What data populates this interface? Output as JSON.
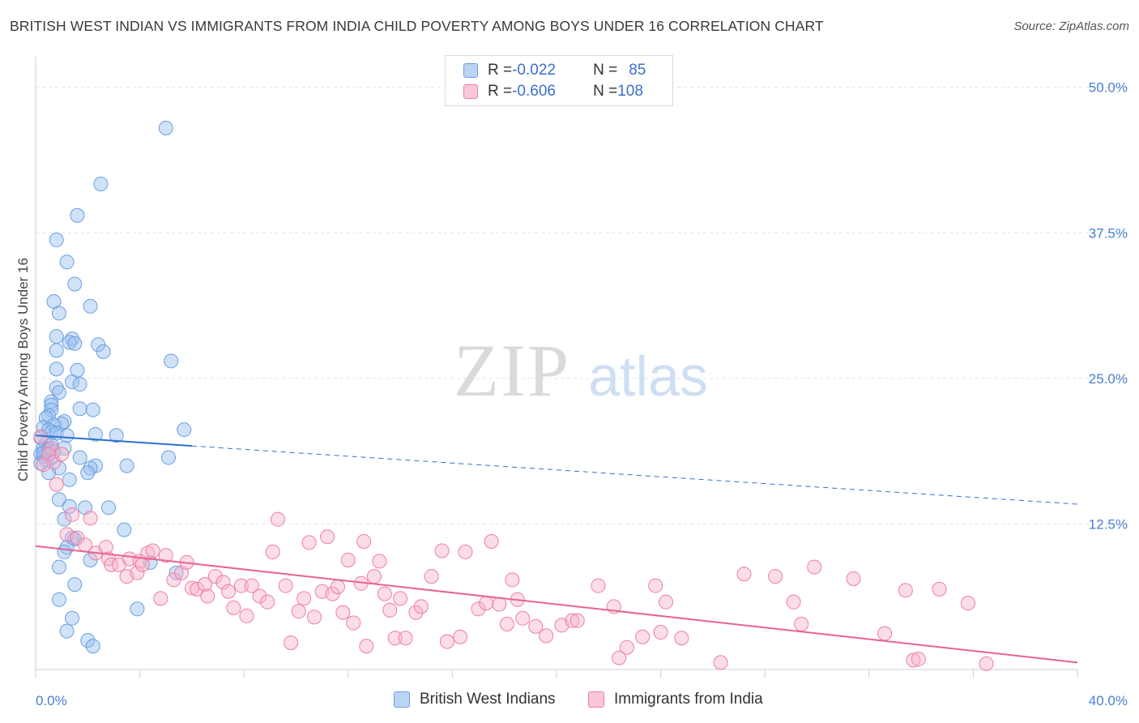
{
  "title": "BRITISH WEST INDIAN VS IMMIGRANTS FROM INDIA CHILD POVERTY AMONG BOYS UNDER 16 CORRELATION CHART",
  "source": "Source: ZipAtlas.com",
  "watermark": {
    "zip": "ZIP",
    "atlas": "atlas"
  },
  "legend": {
    "rows": [
      {
        "r_label": "R = ",
        "r_value": "-0.022",
        "n_label": "N = ",
        "n_value": "85"
      },
      {
        "r_label": "R = ",
        "r_value": "-0.606",
        "n_label": "N = ",
        "n_value": "108"
      }
    ]
  },
  "bottom_legend": [
    "British West Indians",
    "Immigrants from India"
  ],
  "chart_data": {
    "type": "scatter",
    "ylabel": "Child Poverty Among Boys Under 16",
    "xlim": [
      0,
      40
    ],
    "ylim": [
      0,
      52
    ],
    "x_tick_labels": [
      "0.0%",
      "40.0%"
    ],
    "y_ticks": [
      12.5,
      25.0,
      37.5,
      50.0
    ],
    "y_tick_labels": [
      "12.5%",
      "25.0%",
      "37.5%",
      "50.0%"
    ],
    "grid": true,
    "colors": {
      "blue": "#6a9fe0",
      "pink": "#f07ca3",
      "blue_line": "#2f6fd0",
      "pink_line": "#e8638f"
    },
    "series": [
      {
        "name": "British West Indians",
        "color": "blue",
        "points": [
          [
            5.0,
            46.5
          ],
          [
            2.5,
            41.7
          ],
          [
            1.6,
            39.0
          ],
          [
            0.8,
            36.9
          ],
          [
            1.2,
            35.0
          ],
          [
            1.5,
            33.1
          ],
          [
            0.7,
            31.6
          ],
          [
            2.1,
            31.2
          ],
          [
            0.9,
            30.6
          ],
          [
            0.8,
            28.6
          ],
          [
            1.4,
            28.4
          ],
          [
            1.3,
            28.1
          ],
          [
            1.5,
            28.0
          ],
          [
            2.4,
            27.9
          ],
          [
            2.6,
            27.3
          ],
          [
            0.8,
            27.4
          ],
          [
            5.2,
            26.5
          ],
          [
            0.8,
            25.8
          ],
          [
            1.6,
            25.7
          ],
          [
            1.4,
            24.7
          ],
          [
            1.7,
            24.5
          ],
          [
            0.8,
            24.2
          ],
          [
            0.9,
            23.8
          ],
          [
            0.6,
            23.0
          ],
          [
            0.6,
            22.7
          ],
          [
            0.6,
            22.3
          ],
          [
            1.7,
            22.4
          ],
          [
            2.2,
            22.3
          ],
          [
            0.5,
            21.8
          ],
          [
            0.4,
            21.6
          ],
          [
            1.1,
            21.3
          ],
          [
            1.0,
            21.1
          ],
          [
            0.7,
            21.0
          ],
          [
            0.3,
            20.8
          ],
          [
            0.5,
            20.6
          ],
          [
            0.6,
            20.4
          ],
          [
            5.7,
            20.6
          ],
          [
            0.8,
            20.3
          ],
          [
            2.3,
            20.2
          ],
          [
            3.1,
            20.1
          ],
          [
            1.2,
            20.1
          ],
          [
            0.2,
            19.9
          ],
          [
            0.4,
            19.4
          ],
          [
            0.6,
            19.3
          ],
          [
            0.3,
            19.0
          ],
          [
            1.1,
            19.0
          ],
          [
            0.5,
            18.9
          ],
          [
            0.7,
            18.7
          ],
          [
            0.4,
            18.5
          ],
          [
            0.2,
            18.5
          ],
          [
            0.3,
            18.3
          ],
          [
            5.1,
            18.2
          ],
          [
            1.7,
            18.2
          ],
          [
            0.6,
            18.2
          ],
          [
            0.4,
            18.0
          ],
          [
            0.2,
            17.7
          ],
          [
            2.3,
            17.5
          ],
          [
            3.5,
            17.5
          ],
          [
            0.9,
            17.3
          ],
          [
            2.1,
            17.3
          ],
          [
            2.0,
            16.9
          ],
          [
            0.5,
            16.9
          ],
          [
            1.3,
            16.3
          ],
          [
            0.9,
            14.6
          ],
          [
            2.8,
            13.9
          ],
          [
            1.9,
            13.9
          ],
          [
            1.3,
            14.0
          ],
          [
            1.1,
            12.9
          ],
          [
            3.4,
            12.0
          ],
          [
            1.4,
            11.3
          ],
          [
            1.5,
            11.2
          ],
          [
            1.2,
            10.5
          ],
          [
            1.1,
            10.1
          ],
          [
            2.1,
            9.4
          ],
          [
            4.4,
            9.2
          ],
          [
            0.9,
            8.8
          ],
          [
            5.4,
            8.3
          ],
          [
            1.5,
            7.3
          ],
          [
            0.9,
            6.0
          ],
          [
            3.9,
            5.2
          ],
          [
            1.4,
            4.4
          ],
          [
            1.2,
            3.3
          ],
          [
            2.0,
            2.5
          ],
          [
            2.2,
            2.0
          ],
          [
            0.3,
            18.6
          ]
        ]
      },
      {
        "name": "Immigrants from India",
        "color": "pink",
        "points": [
          [
            0.2,
            20.0
          ],
          [
            0.6,
            19.0
          ],
          [
            0.5,
            18.5
          ],
          [
            0.7,
            17.8
          ],
          [
            1.0,
            18.5
          ],
          [
            0.3,
            17.6
          ],
          [
            0.8,
            15.9
          ],
          [
            2.1,
            13.0
          ],
          [
            1.4,
            13.3
          ],
          [
            1.2,
            11.6
          ],
          [
            1.6,
            11.3
          ],
          [
            1.9,
            10.7
          ],
          [
            2.3,
            10.0
          ],
          [
            2.7,
            10.5
          ],
          [
            2.8,
            9.5
          ],
          [
            2.9,
            9.0
          ],
          [
            3.2,
            9.0
          ],
          [
            3.5,
            8.0
          ],
          [
            3.6,
            9.5
          ],
          [
            3.9,
            8.3
          ],
          [
            4.0,
            9.3
          ],
          [
            4.1,
            9.0
          ],
          [
            4.3,
            10.0
          ],
          [
            4.5,
            10.2
          ],
          [
            4.8,
            6.1
          ],
          [
            5.0,
            9.8
          ],
          [
            5.3,
            7.7
          ],
          [
            5.6,
            8.3
          ],
          [
            5.8,
            9.2
          ],
          [
            6.0,
            7.0
          ],
          [
            6.2,
            6.9
          ],
          [
            6.5,
            7.3
          ],
          [
            6.6,
            6.3
          ],
          [
            6.9,
            8.0
          ],
          [
            7.2,
            7.5
          ],
          [
            7.4,
            6.7
          ],
          [
            7.6,
            5.3
          ],
          [
            7.9,
            7.2
          ],
          [
            8.1,
            4.6
          ],
          [
            8.3,
            7.2
          ],
          [
            8.6,
            6.3
          ],
          [
            8.9,
            5.8
          ],
          [
            9.3,
            12.9
          ],
          [
            9.1,
            10.1
          ],
          [
            9.6,
            7.2
          ],
          [
            9.8,
            2.3
          ],
          [
            10.1,
            5.0
          ],
          [
            10.3,
            6.1
          ],
          [
            10.5,
            10.9
          ],
          [
            10.7,
            4.5
          ],
          [
            11.0,
            6.7
          ],
          [
            11.2,
            11.4
          ],
          [
            11.4,
            6.5
          ],
          [
            11.6,
            7.1
          ],
          [
            11.8,
            4.9
          ],
          [
            12.0,
            9.4
          ],
          [
            12.2,
            4.0
          ],
          [
            12.5,
            7.4
          ],
          [
            12.6,
            11.0
          ],
          [
            12.7,
            2.0
          ],
          [
            13.0,
            8.0
          ],
          [
            13.2,
            9.3
          ],
          [
            13.4,
            6.5
          ],
          [
            13.6,
            5.1
          ],
          [
            13.8,
            2.7
          ],
          [
            14.0,
            6.1
          ],
          [
            14.2,
            2.7
          ],
          [
            14.6,
            4.9
          ],
          [
            14.8,
            5.4
          ],
          [
            15.2,
            8.0
          ],
          [
            15.6,
            10.2
          ],
          [
            15.8,
            2.4
          ],
          [
            16.3,
            2.8
          ],
          [
            16.5,
            10.1
          ],
          [
            17.0,
            5.2
          ],
          [
            17.3,
            5.7
          ],
          [
            17.5,
            11.0
          ],
          [
            17.8,
            5.6
          ],
          [
            18.1,
            3.9
          ],
          [
            18.3,
            7.7
          ],
          [
            18.5,
            6.0
          ],
          [
            18.7,
            4.4
          ],
          [
            19.2,
            3.7
          ],
          [
            19.6,
            2.9
          ],
          [
            20.2,
            3.8
          ],
          [
            20.6,
            4.2
          ],
          [
            20.8,
            4.2
          ],
          [
            21.6,
            7.2
          ],
          [
            22.2,
            5.4
          ],
          [
            22.4,
            1.0
          ],
          [
            22.7,
            1.9
          ],
          [
            23.3,
            2.8
          ],
          [
            23.8,
            7.2
          ],
          [
            24.0,
            3.2
          ],
          [
            24.2,
            5.8
          ],
          [
            24.8,
            2.7
          ],
          [
            27.2,
            8.2
          ],
          [
            28.4,
            8.0
          ],
          [
            29.1,
            5.8
          ],
          [
            29.4,
            3.9
          ],
          [
            29.9,
            8.8
          ],
          [
            31.4,
            7.8
          ],
          [
            32.6,
            3.1
          ],
          [
            33.4,
            6.8
          ],
          [
            33.7,
            0.8
          ],
          [
            33.9,
            0.9
          ],
          [
            34.7,
            6.9
          ],
          [
            35.8,
            5.7
          ],
          [
            36.5,
            0.5
          ],
          [
            26.3,
            0.6
          ]
        ]
      }
    ],
    "trend_lines": [
      {
        "series": "British West Indians",
        "solid": [
          [
            0,
            20.1
          ],
          [
            6.0,
            19.2
          ]
        ],
        "dashed": [
          [
            6.0,
            19.2
          ],
          [
            40,
            14.2
          ]
        ]
      },
      {
        "series": "Immigrants from India",
        "solid": [
          [
            0,
            10.6
          ],
          [
            40,
            0.6
          ]
        ]
      }
    ]
  }
}
